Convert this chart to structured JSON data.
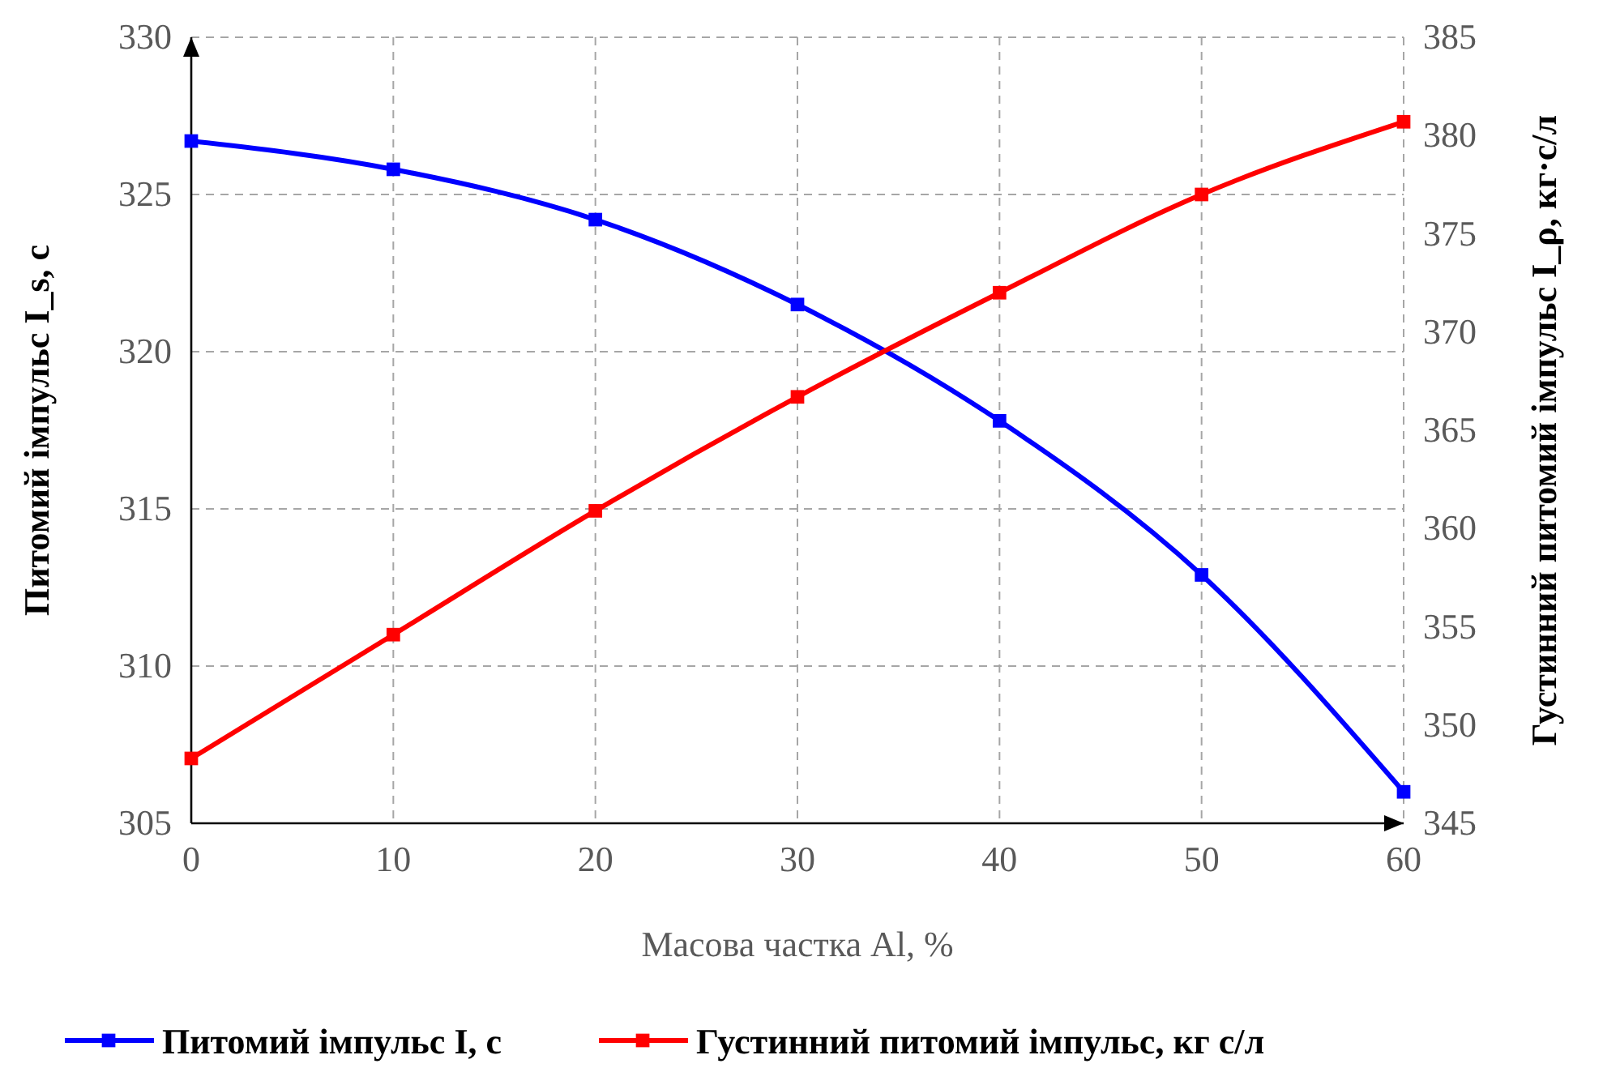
{
  "chart_data": {
    "type": "line",
    "xlabel": "Масова частка Al, %",
    "ylabel": "Питомий імпульс I_s, с",
    "y2label": "Густинний питомий імпульс I_ρ, кг·с/л",
    "x": [
      0,
      10,
      20,
      30,
      40,
      50,
      60
    ],
    "series": [
      {
        "name": "Питомий імпульс I, с",
        "color": "#0000ff",
        "values": [
          326.7,
          325.8,
          324.2,
          321.5,
          317.8,
          312.9,
          306.0
        ]
      },
      {
        "name": "Густинний питомий імпульс, кг с/л",
        "color": "#ff0000",
        "axis": "y2",
        "values": [
          348.3,
          354.6,
          360.9,
          366.7,
          372.0,
          377.0,
          380.7
        ]
      }
    ],
    "xlim": [
      0,
      60
    ],
    "xticks": [
      0,
      10,
      20,
      30,
      40,
      50,
      60
    ],
    "ylim": [
      305,
      330
    ],
    "yticks": [
      305,
      310,
      315,
      320,
      325,
      330
    ],
    "y2lim": [
      345,
      385
    ],
    "y2ticks": [
      345,
      350,
      355,
      360,
      365,
      370,
      375,
      380,
      385
    ],
    "grid": true,
    "legend": "bottom",
    "marker": "square",
    "line_style": "solid"
  }
}
